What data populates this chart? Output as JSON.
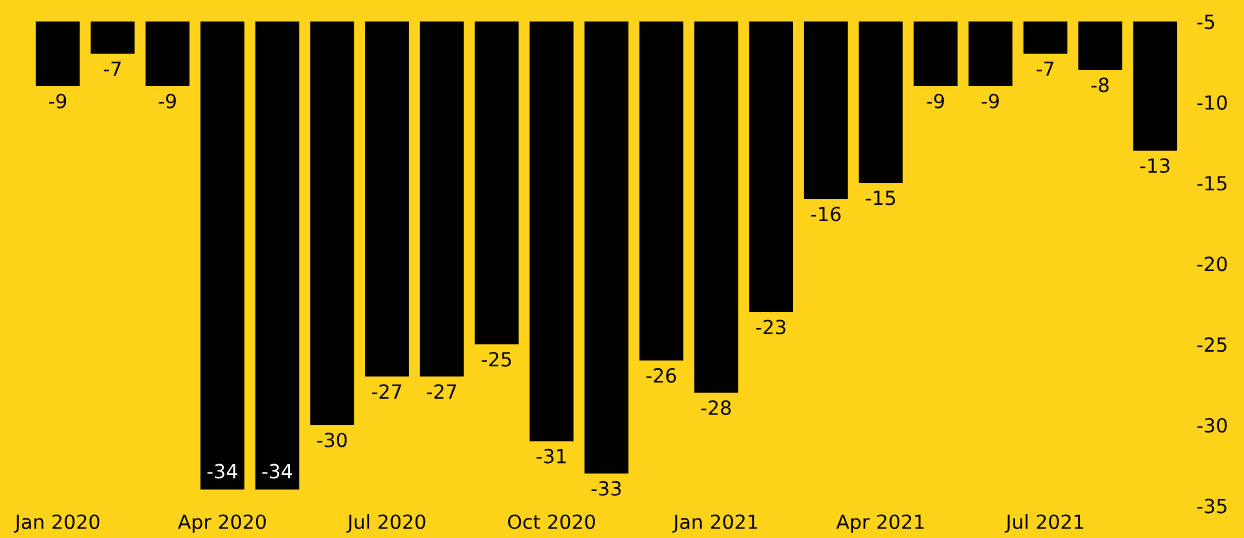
{
  "chart_data": {
    "type": "bar",
    "categories": [
      "Jan 2020",
      null,
      null,
      "Apr 2020",
      null,
      null,
      "Jul 2020",
      null,
      null,
      "Oct 2020",
      null,
      null,
      "Jan 2021",
      null,
      null,
      "Apr 2021",
      null,
      null,
      "Jul 2021",
      null,
      null
    ],
    "values": [
      -9,
      -7,
      -9,
      -34,
      -34,
      -30,
      -27,
      -27,
      -25,
      -31,
      -33,
      -26,
      -28,
      -23,
      -16,
      -15,
      -9,
      -9,
      -7,
      -8,
      -13
    ],
    "color": "#000000",
    "ylim": [
      -35,
      -5
    ],
    "yticks": [
      -35,
      -30,
      -25,
      -20,
      -15,
      -10,
      -5
    ],
    "data_labels": true,
    "grid": false,
    "legend": false
  }
}
